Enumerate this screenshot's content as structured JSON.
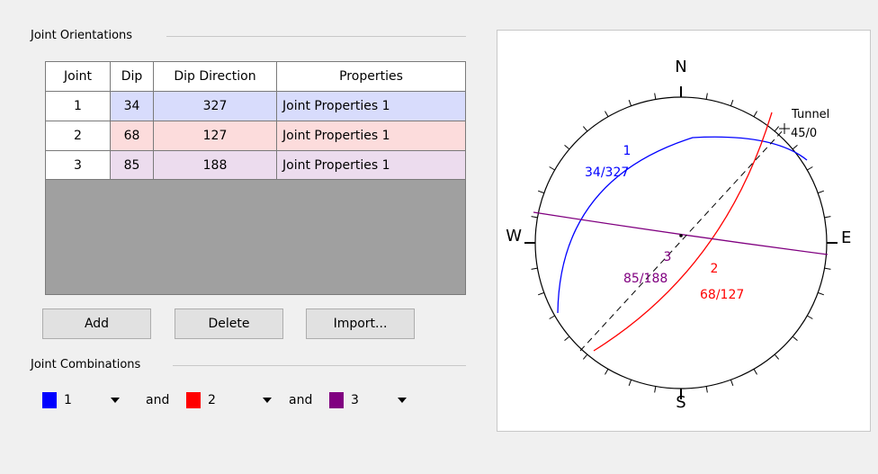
{
  "group_title": "Joint Orientations",
  "table": {
    "headers": [
      "Joint",
      "Dip",
      "Dip Direction",
      "Properties"
    ],
    "rows": [
      [
        1,
        34,
        327,
        "Joint Properties 1"
      ],
      [
        2,
        68,
        127,
        "Joint Properties 1"
      ],
      [
        3,
        85,
        188,
        "Joint Properties 1"
      ]
    ]
  },
  "buttons": [
    "Add",
    "Delete",
    "Import..."
  ],
  "combinations": {
    "title": "Joint Combinations",
    "joints": [
      "1",
      "2",
      "3"
    ],
    "connectors": [
      "and",
      "and"
    ]
  },
  "stereonet": {
    "compass": [
      "N",
      "E",
      "S",
      "W"
    ],
    "tunnel": {
      "name": "Tunnel",
      "orientation": "45/0"
    },
    "planes": [
      {
        "id": "1",
        "label": "34/327"
      },
      {
        "id": "2",
        "label": "68/127"
      },
      {
        "id": "3",
        "label": "85/188"
      }
    ]
  }
}
